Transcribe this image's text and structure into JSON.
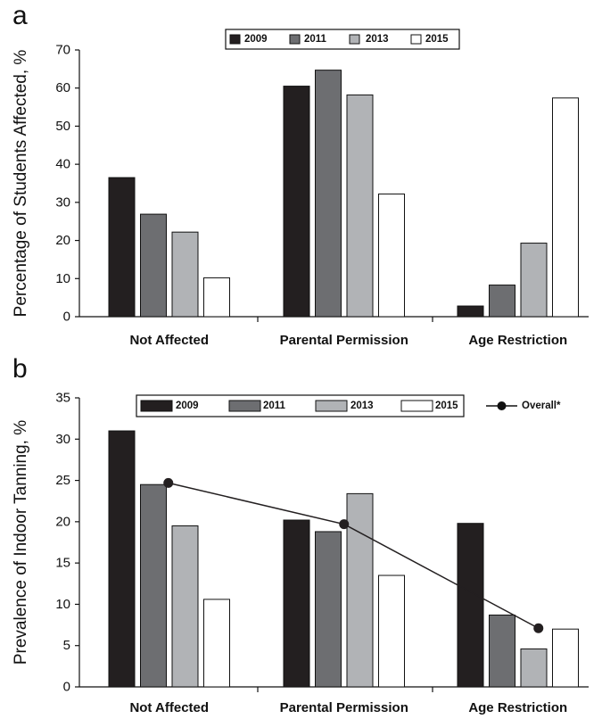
{
  "chart_data": [
    {
      "panel_label": "a",
      "type": "bar",
      "ylabel": "Percentage of Students Affected, %",
      "xlabel": "",
      "ylim": [
        0,
        70
      ],
      "yticks": [
        0,
        10,
        20,
        30,
        40,
        50,
        60,
        70
      ],
      "categories": [
        "Not Affected",
        "Parental Permission",
        "Age Restriction"
      ],
      "legend_position": "top-center",
      "series": [
        {
          "name": "2009",
          "color": "#231f20",
          "values": [
            36.5,
            60.5,
            2.8
          ]
        },
        {
          "name": "2011",
          "color": "#6d6e71",
          "values": [
            26.9,
            64.7,
            8.3
          ]
        },
        {
          "name": "2013",
          "color": "#b1b3b6",
          "values": [
            22.2,
            58.2,
            19.3
          ]
        },
        {
          "name": "2015",
          "color": "#ffffff",
          "values": [
            10.2,
            32.2,
            57.4
          ]
        }
      ]
    },
    {
      "panel_label": "b",
      "type": "bar",
      "ylabel": "Prevalence of Indoor Tanning, %",
      "xlabel": "",
      "ylim": [
        0,
        35
      ],
      "yticks": [
        0,
        5,
        10,
        15,
        20,
        25,
        30,
        35
      ],
      "categories": [
        "Not Affected",
        "Parental Permission",
        "Age Restriction"
      ],
      "legend_position": "top-center",
      "series": [
        {
          "name": "2009",
          "color": "#231f20",
          "values": [
            31.0,
            20.2,
            19.8
          ]
        },
        {
          "name": "2011",
          "color": "#6d6e71",
          "values": [
            24.5,
            18.8,
            8.7
          ]
        },
        {
          "name": "2013",
          "color": "#b1b3b6",
          "values": [
            19.5,
            23.4,
            4.6
          ]
        },
        {
          "name": "2015",
          "color": "#ffffff",
          "values": [
            10.6,
            13.5,
            7.0
          ]
        }
      ],
      "line_series": {
        "name": "Overall*",
        "type": "line",
        "color": "#231f20",
        "values": [
          24.7,
          19.7,
          7.1
        ]
      }
    }
  ]
}
